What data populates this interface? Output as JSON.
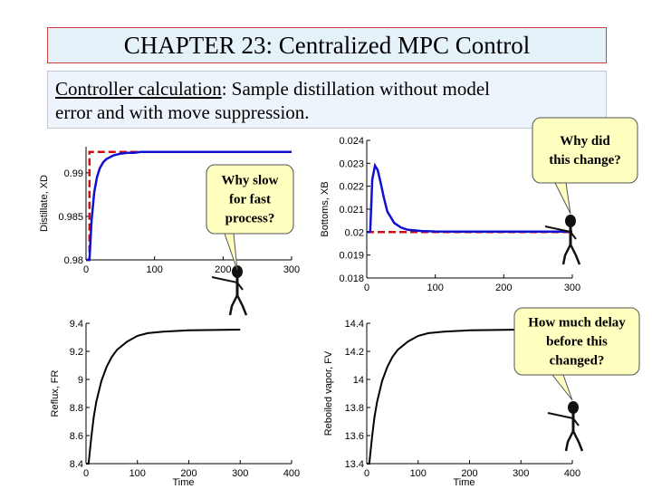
{
  "header": {
    "title": "CHAPTER 23: Centralized MPC Control",
    "subtitle_link": "Controller calculation",
    "subtitle_line1_rest": ": Sample distillation without model",
    "subtitle_line2": "error and with move suppression."
  },
  "callouts": [
    {
      "lines": [
        "Why slow",
        "for fast",
        "process?"
      ]
    },
    {
      "lines": [
        "Why did",
        "this change?"
      ]
    },
    {
      "lines": [
        "How much delay",
        "before this",
        "changed?"
      ]
    }
  ],
  "colors": {
    "response": "#1010d0",
    "setpoint": "#d01010",
    "callout_fill": "#ffffc0"
  },
  "chart_data": [
    {
      "type": "line",
      "ylabel": "Distillate, XD",
      "xlabel": "",
      "xlim": [
        0,
        300
      ],
      "ylim": [
        0.98,
        0.993
      ],
      "xticks": [
        "0",
        "100",
        "200",
        "300"
      ],
      "yticks": [
        "0.98",
        "0.985",
        "0.99"
      ],
      "series": [
        {
          "role": "setpoint",
          "x": [
            0,
            5,
            5,
            300
          ],
          "y": [
            0.98,
            0.98,
            0.9924,
            0.9924
          ]
        },
        {
          "role": "response",
          "x": [
            0,
            5,
            8,
            12,
            16,
            20,
            25,
            30,
            40,
            50,
            60,
            70,
            80,
            100,
            120,
            150,
            200,
            250,
            300
          ],
          "y": [
            0.98,
            0.98,
            0.9845,
            0.9878,
            0.9895,
            0.9905,
            0.9912,
            0.9916,
            0.992,
            0.9922,
            0.9923,
            0.9923,
            0.9924,
            0.9924,
            0.9924,
            0.9924,
            0.9924,
            0.9924,
            0.9924
          ]
        }
      ]
    },
    {
      "type": "line",
      "ylabel": "Bottoms, XB",
      "xlabel": "",
      "xlim": [
        0,
        300
      ],
      "ylim": [
        0.018,
        0.024
      ],
      "xticks": [
        "0",
        "100",
        "200",
        "300"
      ],
      "yticks": [
        "0.018",
        "0.019",
        "0.02",
        "0.021",
        "0.022",
        "0.023",
        "0.024"
      ],
      "series": [
        {
          "role": "setpoint",
          "x": [
            0,
            300
          ],
          "y": [
            0.02,
            0.02
          ]
        },
        {
          "role": "response",
          "x": [
            0,
            5,
            8,
            12,
            16,
            20,
            25,
            30,
            40,
            50,
            60,
            80,
            100,
            150,
            200,
            300
          ],
          "y": [
            0.02,
            0.02,
            0.0223,
            0.0229,
            0.0227,
            0.0222,
            0.0215,
            0.0209,
            0.0204,
            0.0202,
            0.0201,
            0.02005,
            0.02003,
            0.02002,
            0.02002,
            0.02002
          ]
        }
      ]
    },
    {
      "type": "line",
      "ylabel": "Reflux, FR",
      "xlabel": "Time",
      "xlim": [
        0,
        400
      ],
      "ylim": [
        8.4,
        9.4
      ],
      "xticks": [
        "0",
        "100",
        "200",
        "300",
        "400"
      ],
      "yticks": [
        "8.4",
        "8.6",
        "8.8",
        "9",
        "9.2",
        "9.4"
      ],
      "series": [
        {
          "role": "response",
          "x": [
            0,
            5,
            10,
            15,
            20,
            30,
            40,
            50,
            60,
            80,
            100,
            120,
            150,
            200,
            250,
            300
          ],
          "y": [
            8.4,
            8.4,
            8.58,
            8.73,
            8.84,
            8.99,
            9.09,
            9.16,
            9.21,
            9.27,
            9.31,
            9.33,
            9.34,
            9.35,
            9.352,
            9.355
          ]
        }
      ]
    },
    {
      "type": "line",
      "ylabel": "Reboiled vapor, FV",
      "xlabel": "Time",
      "xlim": [
        0,
        400
      ],
      "ylim": [
        13.4,
        14.4
      ],
      "xticks": [
        "0",
        "100",
        "200",
        "300",
        "400"
      ],
      "yticks": [
        "13.4",
        "13.6",
        "13.8",
        "14",
        "14.2",
        "14.4"
      ],
      "series": [
        {
          "role": "response",
          "x": [
            0,
            5,
            10,
            15,
            20,
            30,
            40,
            50,
            60,
            80,
            100,
            120,
            150,
            200,
            250,
            300
          ],
          "y": [
            13.4,
            13.4,
            13.58,
            13.73,
            13.84,
            13.99,
            14.09,
            14.16,
            14.21,
            14.27,
            14.31,
            14.33,
            14.34,
            14.35,
            14.352,
            14.355
          ]
        }
      ]
    }
  ]
}
